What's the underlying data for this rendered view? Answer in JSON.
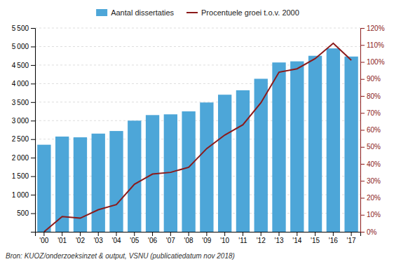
{
  "chart_data": {
    "type": "bar",
    "categories": [
      "'00",
      "'01",
      "'02",
      "'03",
      "'04",
      "'05",
      "'06",
      "'07",
      "'08",
      "'09",
      "'10",
      "'11",
      "'12",
      "'13",
      "'14",
      "'15",
      "'16",
      "'17"
    ],
    "series": [
      {
        "name": "Aantal dissertaties",
        "type": "bar",
        "color": "#4da6d8",
        "values": [
          2350,
          2570,
          2550,
          2650,
          2720,
          3000,
          3150,
          3170,
          3250,
          3490,
          3700,
          3820,
          4130,
          4570,
          4600,
          4750,
          4950,
          4730
        ]
      },
      {
        "name": "Procentuele groei t.o.v. 2000",
        "type": "line",
        "axis": "y2",
        "color": "#8B1A1A",
        "values": [
          0,
          9,
          8,
          13,
          16,
          28,
          34,
          35,
          38,
          49,
          57,
          63,
          76,
          94,
          96,
          102,
          111,
          101
        ]
      }
    ],
    "ylim": [
      0,
      5500
    ],
    "yticks": [
      500,
      {
        "value": 1000,
        "label": "1 000"
      },
      {
        "value": 1500,
        "label": "1 500"
      },
      {
        "value": 2000,
        "label": "2 000"
      },
      {
        "value": 2500,
        "label": "2 500"
      },
      {
        "value": 3000,
        "label": "3 000"
      },
      {
        "value": 3500,
        "label": "3 500"
      },
      {
        "value": 4000,
        "label": "4 000"
      },
      {
        "value": 4500,
        "label": "4 500"
      },
      {
        "value": 5000,
        "label": "5 000"
      },
      {
        "value": 5500,
        "label": "5 500"
      }
    ],
    "y2lim": [
      0,
      120
    ],
    "y2ticks": [
      {
        "value": 0,
        "label": "0%"
      },
      {
        "value": 10,
        "label": "10%"
      },
      {
        "value": 20,
        "label": "20%"
      },
      {
        "value": 30,
        "label": "30%"
      },
      {
        "value": 40,
        "label": "40%"
      },
      {
        "value": 50,
        "label": "50%"
      },
      {
        "value": 60,
        "label": "60%"
      },
      {
        "value": 70,
        "label": "70%"
      },
      {
        "value": 80,
        "label": "80%"
      },
      {
        "value": 90,
        "label": "90%"
      },
      {
        "value": 100,
        "label": "100%"
      },
      {
        "value": 110,
        "label": "110%"
      },
      {
        "value": 120,
        "label": "120%"
      }
    ],
    "grid": true,
    "legend": "top",
    "annotations": [
      "Bron: KUOZ/onderzoeksinzet & output, VSNU (publicatiedatum nov 2018)"
    ]
  }
}
